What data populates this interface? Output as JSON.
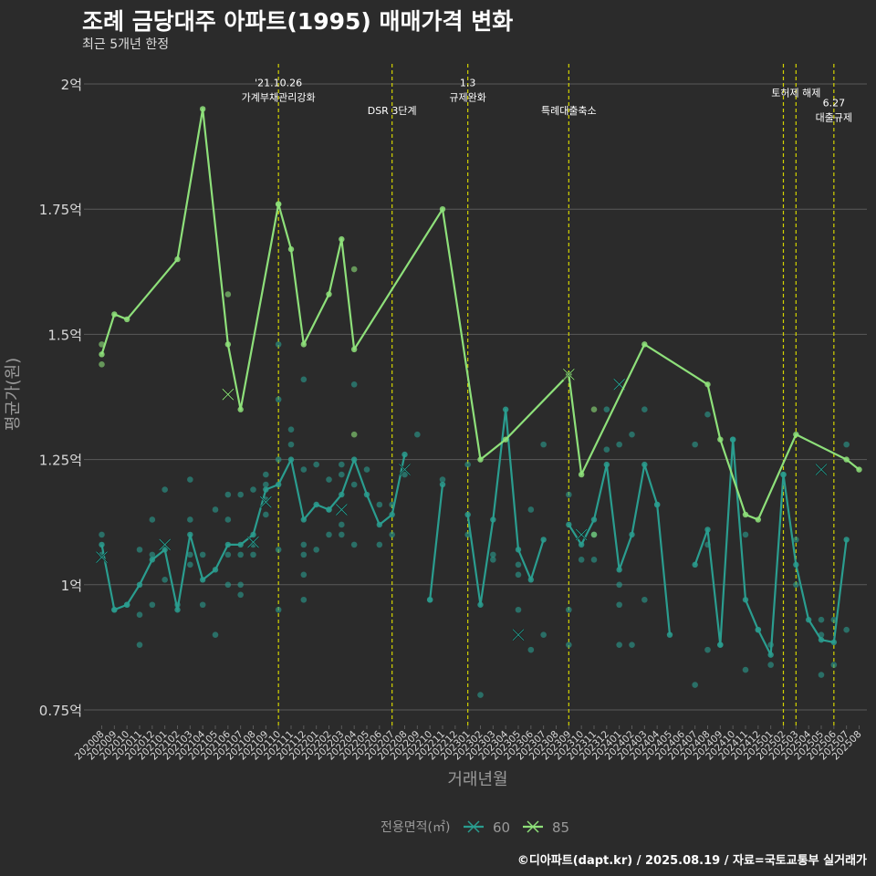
{
  "title": "조례 금당대주 아파트(1995) 매매가격 변화",
  "subtitle": "최근 5개년 한정",
  "caption": "©디아파트(dapt.kr) / 2025.08.19 / 자료=국토교통부 실거래가",
  "colors": {
    "background": "#2b2b2b",
    "grid": "#5a5a5a",
    "series60": "#2a9d8f",
    "series85": "#8ee07a",
    "event_line": "#d4d400",
    "text": "#ffffff",
    "axis_text": "#d9d9d9",
    "muted": "#9a9a9a"
  },
  "chart_data": {
    "type": "line",
    "xlabel": "거래년월",
    "ylabel": "평균가(원)",
    "ylim": [
      0.75,
      2.0
    ],
    "yticks": [
      {
        "value": 0.75,
        "label": "0.75억"
      },
      {
        "value": 1.0,
        "label": "1억"
      },
      {
        "value": 1.25,
        "label": "1.25억"
      },
      {
        "value": 1.5,
        "label": "1.5억"
      },
      {
        "value": 1.75,
        "label": "1.75억"
      },
      {
        "value": 2.0,
        "label": "2억"
      }
    ],
    "categories": [
      "202008",
      "202009",
      "202010",
      "202011",
      "202012",
      "202101",
      "202102",
      "202103",
      "202104",
      "202105",
      "202106",
      "202107",
      "202108",
      "202109",
      "202110",
      "202111",
      "202112",
      "202201",
      "202202",
      "202203",
      "202204",
      "202205",
      "202206",
      "202207",
      "202208",
      "202209",
      "202210",
      "202211",
      "202212",
      "202301",
      "202302",
      "202303",
      "202304",
      "202305",
      "202306",
      "202307",
      "202308",
      "202309",
      "202310",
      "202311",
      "202312",
      "202401",
      "202402",
      "202403",
      "202404",
      "202405",
      "202406",
      "202407",
      "202408",
      "202409",
      "202410",
      "202411",
      "202412",
      "202501",
      "202502",
      "202503",
      "202504",
      "202505",
      "202506",
      "202507",
      "202508"
    ],
    "legend": {
      "title": "전용면적(㎡)",
      "position": "bottom"
    },
    "series": [
      {
        "name": "60",
        "color": "#2a9d8f",
        "line": [
          [
            "202008",
            1.08
          ],
          [
            "202009",
            0.95
          ],
          [
            "202010",
            0.96
          ],
          [
            "202011",
            1.0
          ],
          [
            "202012",
            1.05
          ],
          [
            "202101",
            1.07
          ],
          [
            "202102",
            0.95
          ],
          [
            "202103",
            1.1
          ],
          [
            "202104",
            1.01
          ],
          [
            "202105",
            1.03
          ],
          [
            "202106",
            1.08
          ],
          [
            "202107",
            1.08
          ],
          [
            "202108",
            1.1
          ],
          [
            "202109",
            1.19
          ],
          [
            "202110",
            1.2
          ],
          [
            "202111",
            1.25
          ],
          [
            "202112",
            1.13
          ],
          [
            "202201",
            1.16
          ],
          [
            "202202",
            1.15
          ],
          [
            "202203",
            1.18
          ],
          [
            "202204",
            1.25
          ],
          [
            "202205",
            1.18
          ],
          [
            "202206",
            1.12
          ],
          [
            "202207",
            1.14
          ],
          [
            "202208",
            1.26
          ],
          null,
          [
            "202210",
            0.97
          ],
          [
            "202211",
            1.2
          ],
          null,
          [
            "202301",
            1.14
          ],
          [
            "202302",
            0.96
          ],
          [
            "202303",
            1.13
          ],
          [
            "202304",
            1.35
          ],
          [
            "202305",
            1.07
          ],
          [
            "202306",
            1.01
          ],
          [
            "202307",
            1.09
          ],
          null,
          [
            "202309",
            1.12
          ],
          [
            "202310",
            1.08
          ],
          [
            "202311",
            1.13
          ],
          [
            "202312",
            1.24
          ],
          [
            "202401",
            1.03
          ],
          [
            "202402",
            1.1
          ],
          [
            "202403",
            1.24
          ],
          [
            "202404",
            1.16
          ],
          [
            "202405",
            0.9
          ],
          null,
          [
            "202407",
            1.04
          ],
          [
            "202408",
            1.11
          ],
          [
            "202409",
            0.88
          ],
          [
            "202410",
            1.29
          ],
          [
            "202411",
            0.97
          ],
          [
            "202412",
            0.91
          ],
          [
            "202501",
            0.86
          ],
          [
            "202502",
            1.22
          ],
          [
            "202503",
            1.04
          ],
          [
            "202504",
            0.93
          ],
          [
            "202505",
            0.89
          ],
          [
            "202506",
            0.885
          ],
          [
            "202507",
            1.09
          ]
        ],
        "points": [
          [
            "202008",
            1.1
          ],
          [
            "202008",
            1.06
          ],
          [
            "202009",
            0.95
          ],
          [
            "202010",
            0.96
          ],
          [
            "202011",
            0.88
          ],
          [
            "202011",
            0.94
          ],
          [
            "202011",
            1.07
          ],
          [
            "202012",
            0.96
          ],
          [
            "202012",
            1.06
          ],
          [
            "202012",
            1.13
          ],
          [
            "202101",
            1.01
          ],
          [
            "202101",
            1.19
          ],
          [
            "202102",
            0.96
          ],
          [
            "202103",
            1.21
          ],
          [
            "202103",
            1.13
          ],
          [
            "202103",
            1.06
          ],
          [
            "202103",
            1.04
          ],
          [
            "202104",
            0.96
          ],
          [
            "202104",
            1.06
          ],
          [
            "202105",
            0.9
          ],
          [
            "202105",
            1.15
          ],
          [
            "202106",
            1.0
          ],
          [
            "202106",
            1.06
          ],
          [
            "202106",
            1.13
          ],
          [
            "202106",
            1.18
          ],
          [
            "202107",
            0.98
          ],
          [
            "202107",
            1.0
          ],
          [
            "202107",
            1.06
          ],
          [
            "202107",
            1.18
          ],
          [
            "202108",
            1.06
          ],
          [
            "202108",
            1.08
          ],
          [
            "202108",
            1.19
          ],
          [
            "202109",
            1.14
          ],
          [
            "202109",
            1.17
          ],
          [
            "202109",
            1.2
          ],
          [
            "202109",
            1.22
          ],
          [
            "202110",
            0.95
          ],
          [
            "202110",
            1.07
          ],
          [
            "202110",
            1.25
          ],
          [
            "202110",
            1.37
          ],
          [
            "202110",
            1.48
          ],
          [
            "202111",
            1.28
          ],
          [
            "202111",
            1.31
          ],
          [
            "202112",
            1.41
          ],
          [
            "202112",
            1.23
          ],
          [
            "202112",
            1.08
          ],
          [
            "202112",
            1.06
          ],
          [
            "202112",
            1.02
          ],
          [
            "202112",
            0.97
          ],
          [
            "202201",
            1.07
          ],
          [
            "202201",
            1.24
          ],
          [
            "202202",
            1.1
          ],
          [
            "202202",
            1.15
          ],
          [
            "202202",
            1.21
          ],
          [
            "202203",
            1.1
          ],
          [
            "202203",
            1.12
          ],
          [
            "202203",
            1.24
          ],
          [
            "202203",
            1.22
          ],
          [
            "202204",
            1.08
          ],
          [
            "202204",
            1.2
          ],
          [
            "202204",
            1.4
          ],
          [
            "202205",
            1.23
          ],
          [
            "202206",
            1.08
          ],
          [
            "202206",
            1.16
          ],
          [
            "202207",
            1.1
          ],
          [
            "202207",
            1.16
          ],
          [
            "202208",
            1.22
          ],
          [
            "202209",
            1.3
          ],
          [
            "202210",
            0.97
          ],
          [
            "202211",
            1.21
          ],
          [
            "202301",
            1.24
          ],
          [
            "202301",
            1.1
          ],
          [
            "202302",
            0.78
          ],
          [
            "202303",
            1.06
          ],
          [
            "202303",
            1.05
          ],
          [
            "202305",
            1.04
          ],
          [
            "202305",
            0.95
          ],
          [
            "202305",
            1.02
          ],
          [
            "202306",
            0.87
          ],
          [
            "202306",
            1.15
          ],
          [
            "202307",
            0.9
          ],
          [
            "202307",
            1.28
          ],
          [
            "202309",
            0.88
          ],
          [
            "202309",
            0.95
          ],
          [
            "202309",
            1.18
          ],
          [
            "202310",
            1.05
          ],
          [
            "202311",
            1.05
          ],
          [
            "202311",
            1.1
          ],
          [
            "202312",
            1.35
          ],
          [
            "202312",
            1.27
          ],
          [
            "202401",
            0.88
          ],
          [
            "202401",
            0.96
          ],
          [
            "202401",
            1.0
          ],
          [
            "202401",
            1.28
          ],
          [
            "202402",
            0.88
          ],
          [
            "202402",
            1.3
          ],
          [
            "202403",
            0.97
          ],
          [
            "202403",
            1.35
          ],
          [
            "202404",
            1.16
          ],
          [
            "202407",
            0.8
          ],
          [
            "202407",
            1.28
          ],
          [
            "202408",
            0.87
          ],
          [
            "202408",
            1.08
          ],
          [
            "202408",
            1.34
          ],
          [
            "202409",
            0.88
          ],
          [
            "202410",
            1.29
          ],
          [
            "202411",
            0.83
          ],
          [
            "202411",
            1.1
          ],
          [
            "202412",
            0.91
          ],
          [
            "202501",
            0.88
          ],
          [
            "202501",
            0.84
          ],
          [
            "202502",
            1.22
          ],
          [
            "202503",
            1.0
          ],
          [
            "202503",
            1.09
          ],
          [
            "202505",
            0.82
          ],
          [
            "202505",
            0.9
          ],
          [
            "202505",
            0.93
          ],
          [
            "202506",
            0.84
          ],
          [
            "202506",
            0.93
          ],
          [
            "202507",
            0.91
          ],
          [
            "202507",
            1.28
          ]
        ],
        "x_markers": [
          [
            "202008",
            1.055
          ],
          [
            "202101",
            1.08
          ],
          [
            "202108",
            1.085
          ],
          [
            "202109",
            1.165
          ],
          [
            "202203",
            1.15
          ],
          [
            "202208",
            1.23
          ],
          [
            "202305",
            0.9
          ],
          [
            "202310",
            1.1
          ],
          [
            "202401",
            1.4
          ],
          [
            "202505",
            1.23
          ]
        ]
      },
      {
        "name": "85",
        "color": "#8ee07a",
        "line": [
          [
            "202008",
            1.46
          ],
          [
            "202009",
            1.54
          ],
          [
            "202010",
            1.53
          ],
          [
            "202102",
            1.65
          ],
          [
            "202104",
            1.95
          ],
          [
            "202106",
            1.48
          ],
          [
            "202107",
            1.35
          ],
          [
            "202110",
            1.76
          ],
          [
            "202111",
            1.67
          ],
          [
            "202112",
            1.48
          ],
          [
            "202202",
            1.58
          ],
          [
            "202203",
            1.69
          ],
          [
            "202204",
            1.47
          ],
          [
            "202211",
            1.75
          ],
          [
            "202302",
            1.25
          ],
          [
            "202304",
            1.29
          ],
          [
            "202309",
            1.42
          ],
          [
            "202310",
            1.22
          ],
          [
            "202403",
            1.48
          ],
          [
            "202408",
            1.4
          ],
          [
            "202409",
            1.29
          ],
          [
            "202411",
            1.14
          ],
          [
            "202412",
            1.13
          ],
          [
            "202503",
            1.3
          ],
          [
            "202507",
            1.25
          ],
          [
            "202508",
            1.23
          ]
        ],
        "points": [
          [
            "202008",
            1.48
          ],
          [
            "202008",
            1.44
          ],
          [
            "202106",
            1.58
          ],
          [
            "202110",
            1.76
          ],
          [
            "202204",
            1.63
          ],
          [
            "202204",
            1.3
          ],
          [
            "202311",
            1.35
          ],
          [
            "202311",
            1.1
          ]
        ],
        "x_markers": [
          [
            "202106",
            1.38
          ],
          [
            "202309",
            1.42
          ]
        ]
      }
    ],
    "annotations": [
      {
        "x": "202110",
        "label_lines": [
          "'21.10.26",
          "가계부채관리강화"
        ],
        "y": 1.995
      },
      {
        "x": "202207",
        "label_lines": [
          "DSR 3단계"
        ],
        "y": 1.94
      },
      {
        "x": "202301",
        "label_lines": [
          "1.3",
          "규제완화"
        ],
        "y": 1.995
      },
      {
        "x": "202309",
        "label_lines": [
          "특례대출축소"
        ],
        "y": 1.94
      },
      {
        "x": "202502",
        "label_lines": [],
        "y": 1.97
      },
      {
        "x": "202503",
        "label_lines": [
          "토허제 해제"
        ],
        "y": 1.975
      },
      {
        "x": "202506",
        "label_lines": [
          "6.27",
          "대출규제"
        ],
        "y": 1.955
      }
    ]
  }
}
